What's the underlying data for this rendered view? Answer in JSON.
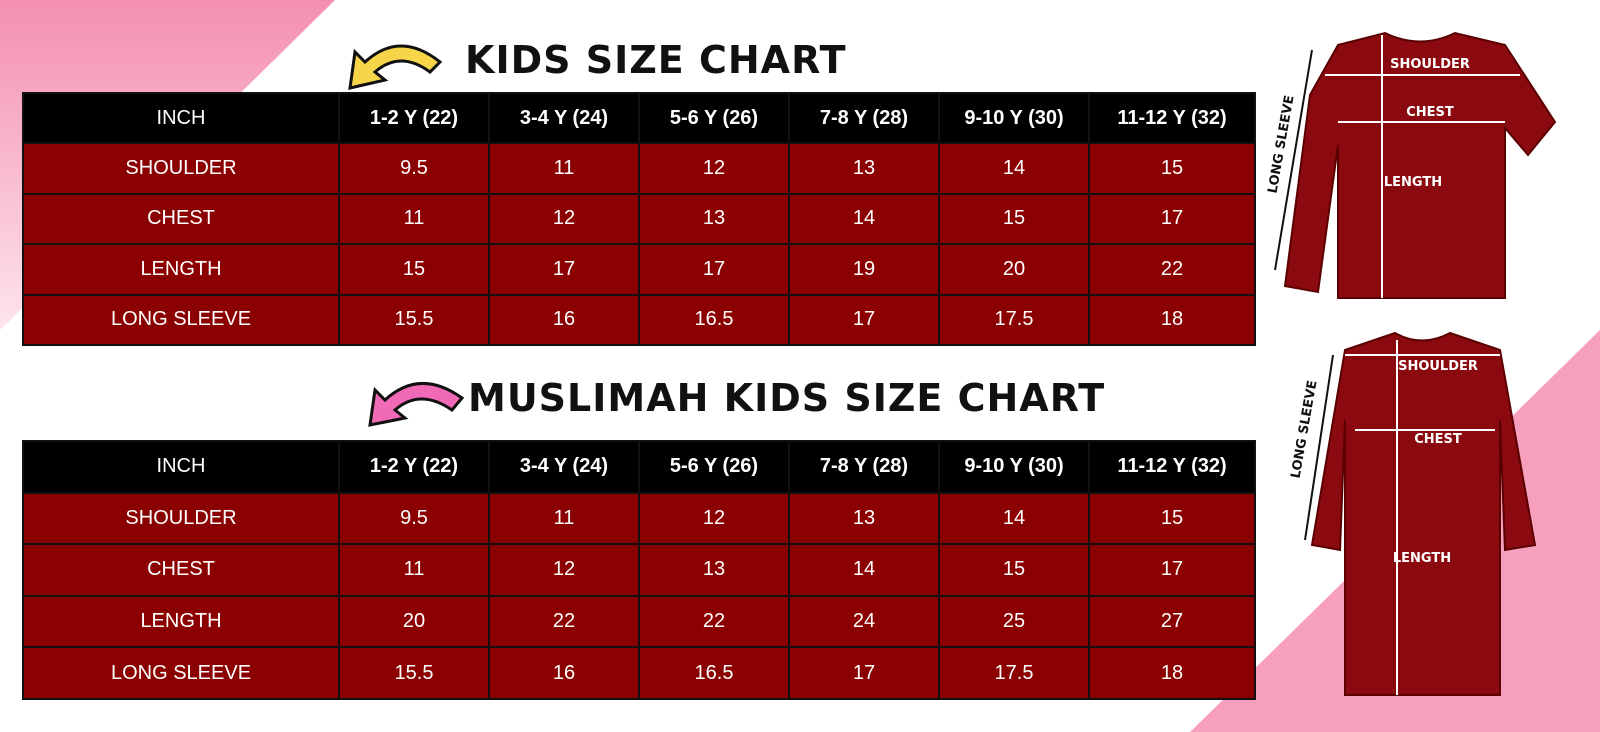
{
  "kids_chart": {
    "title": "KIDS SIZE CHART",
    "header": [
      "INCH",
      "1-2 Y (22)",
      "3-4 Y (24)",
      "5-6 Y (26)",
      "7-8 Y (28)",
      "9-10 Y (30)",
      "11-12 Y (32)"
    ],
    "rows": [
      [
        "SHOULDER",
        9.5,
        11,
        12,
        13,
        14,
        15
      ],
      [
        "CHEST",
        11,
        12,
        13,
        14,
        15,
        17
      ],
      [
        "LENGTH",
        15,
        17,
        17,
        19,
        20,
        22
      ],
      [
        "LONG SLEEVE",
        15.5,
        16,
        16.5,
        17,
        17.5,
        18
      ]
    ]
  },
  "muslimah_chart": {
    "title": "MUSLIMAH KIDS SIZE CHART",
    "header": [
      "INCH",
      "1-2 Y (22)",
      "3-4 Y (24)",
      "5-6 Y (26)",
      "7-8 Y (28)",
      "9-10 Y (30)",
      "11-12 Y (32)"
    ],
    "rows": [
      [
        "SHOULDER",
        9.5,
        11,
        12,
        13,
        14,
        15
      ],
      [
        "CHEST",
        11,
        12,
        13,
        14,
        15,
        17
      ],
      [
        "LENGTH",
        20,
        22,
        22,
        24,
        25,
        27
      ],
      [
        "LONG SLEEVE",
        15.5,
        16,
        16.5,
        17,
        17.5,
        18
      ]
    ]
  },
  "diagrams": {
    "shirt": {
      "shoulder": "SHOULDER",
      "chest": "CHEST",
      "length": "LENGTH",
      "long_sleeve": "LONG SLEEVE"
    },
    "dress": {
      "shoulder": "SHOULDER",
      "chest": "CHEST",
      "length": "LENGTH",
      "long_sleeve": "LONG SLEEVE"
    }
  }
}
